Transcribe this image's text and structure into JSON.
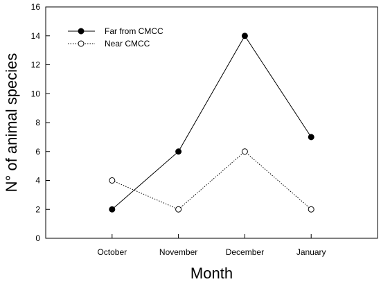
{
  "chart_data": {
    "type": "line",
    "categories": [
      "October",
      "November",
      "December",
      "January"
    ],
    "series": [
      {
        "name": "Far from CMCC",
        "values": [
          2,
          6,
          14,
          7
        ],
        "line_style": "solid",
        "marker": "filled-circle",
        "color": "#000000"
      },
      {
        "name": "Near CMCC",
        "values": [
          4,
          2,
          6,
          2
        ],
        "line_style": "dotted",
        "marker": "open-circle",
        "color": "#000000"
      }
    ],
    "xlabel": "Month",
    "ylabel": "N° of animal species",
    "ylim": [
      0,
      16
    ],
    "yticks": [
      0,
      2,
      4,
      6,
      8,
      10,
      12,
      14,
      16
    ],
    "grid": false,
    "legend_position": "top-left"
  }
}
